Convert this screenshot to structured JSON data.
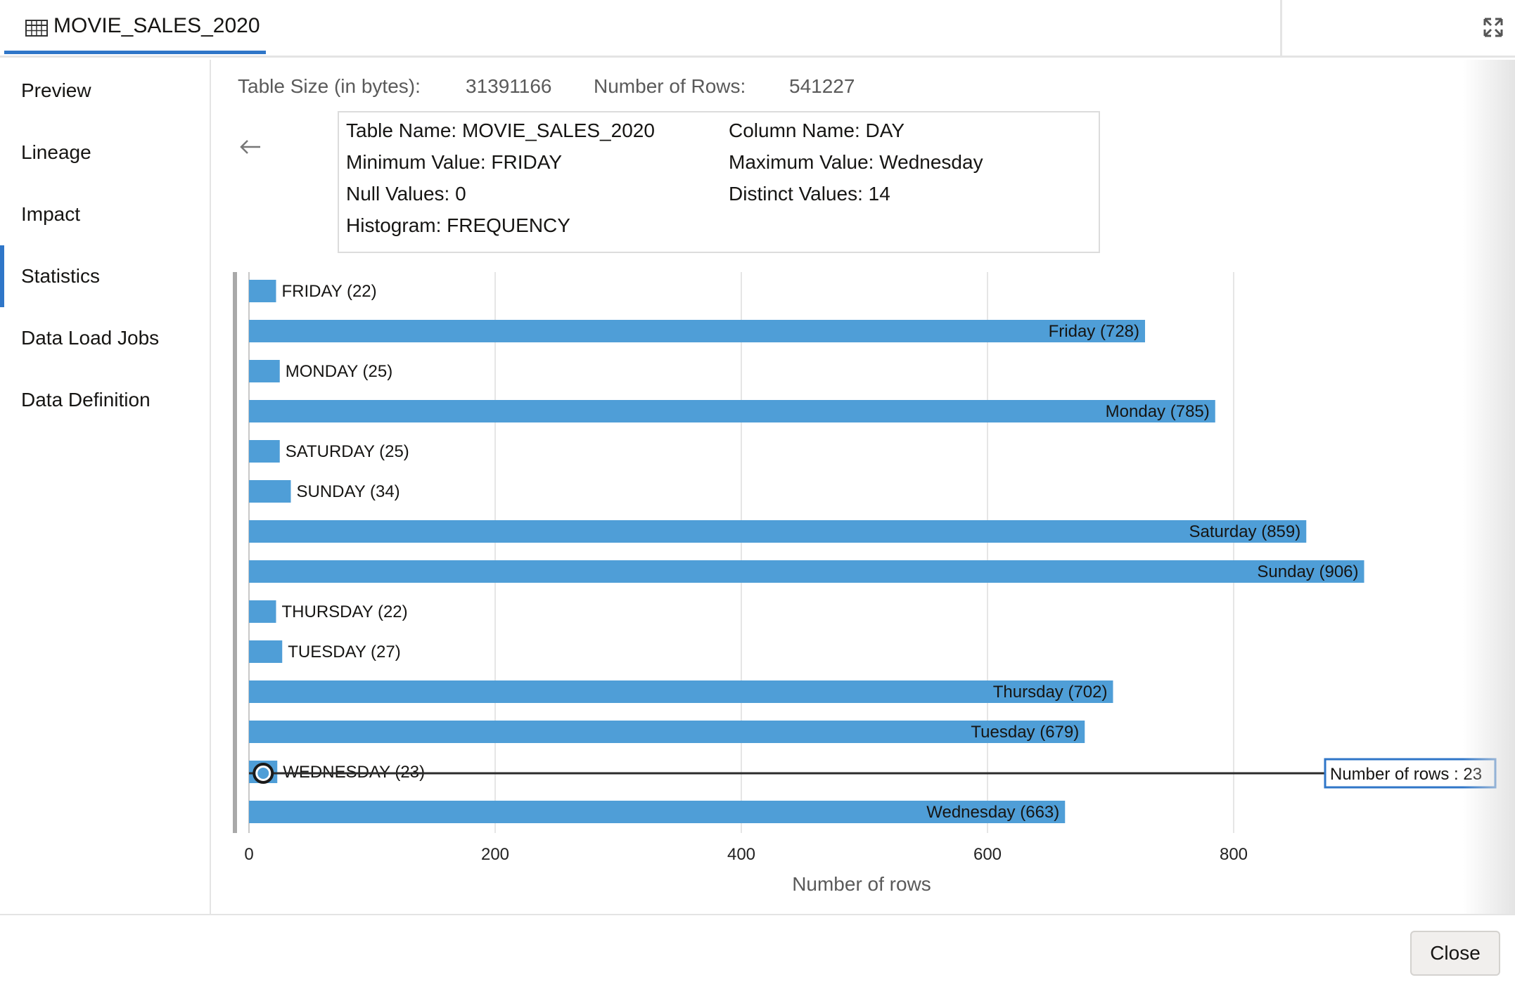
{
  "tab": {
    "title": "MOVIE_SALES_2020",
    "icon": "table-icon"
  },
  "header": {
    "expand_icon": "expand-icon"
  },
  "sidebar": {
    "items": [
      {
        "label": "Preview"
      },
      {
        "label": "Lineage"
      },
      {
        "label": "Impact"
      },
      {
        "label": "Statistics",
        "active": true
      },
      {
        "label": "Data Load Jobs"
      },
      {
        "label": "Data Definition"
      }
    ]
  },
  "stats": {
    "table_size_label": "Table Size (in bytes):",
    "table_size_value": "31391166",
    "rows_label": "Number of Rows:",
    "rows_value": "541227"
  },
  "column_info": {
    "table_name": "Table Name: MOVIE_SALES_2020",
    "column_name": "Column Name: DAY",
    "min_value": "Minimum Value: FRIDAY",
    "max_value": "Maximum Value: Wednesday",
    "null_values": "Null Values: 0",
    "distinct_values": "Distinct Values: 14",
    "histogram": "Histogram: FREQUENCY"
  },
  "chart_data": {
    "type": "bar",
    "orientation": "horizontal",
    "categories": [
      "FRIDAY",
      "Friday",
      "MONDAY",
      "Monday",
      "SATURDAY",
      "SUNDAY",
      "Saturday",
      "Sunday",
      "THURSDAY",
      "TUESDAY",
      "Thursday",
      "Tuesday",
      "WEDNESDAY",
      "Wednesday"
    ],
    "values": [
      22,
      728,
      25,
      785,
      25,
      34,
      859,
      906,
      22,
      27,
      702,
      679,
      23,
      663
    ],
    "labels": [
      "FRIDAY (22)",
      "Friday (728)",
      "MONDAY (25)",
      "Monday (785)",
      "SATURDAY (25)",
      "SUNDAY (34)",
      "Saturday (859)",
      "Sunday (906)",
      "THURSDAY (22)",
      "TUESDAY (27)",
      "Thursday (702)",
      "Tuesday (679)",
      "WEDNESDAY (23)",
      "Wednesday (663)"
    ],
    "xlabel": "Number of rows",
    "xticks": [
      0,
      200,
      400,
      800
    ],
    "xticks_all": [
      0,
      200,
      400,
      600,
      800
    ],
    "xlim": [
      0,
      1000
    ],
    "grid": true,
    "color": "#4f9ed7",
    "tooltip": {
      "category_index": 12,
      "text": "Number of rows : 23"
    }
  },
  "footer": {
    "close_label": "Close"
  }
}
